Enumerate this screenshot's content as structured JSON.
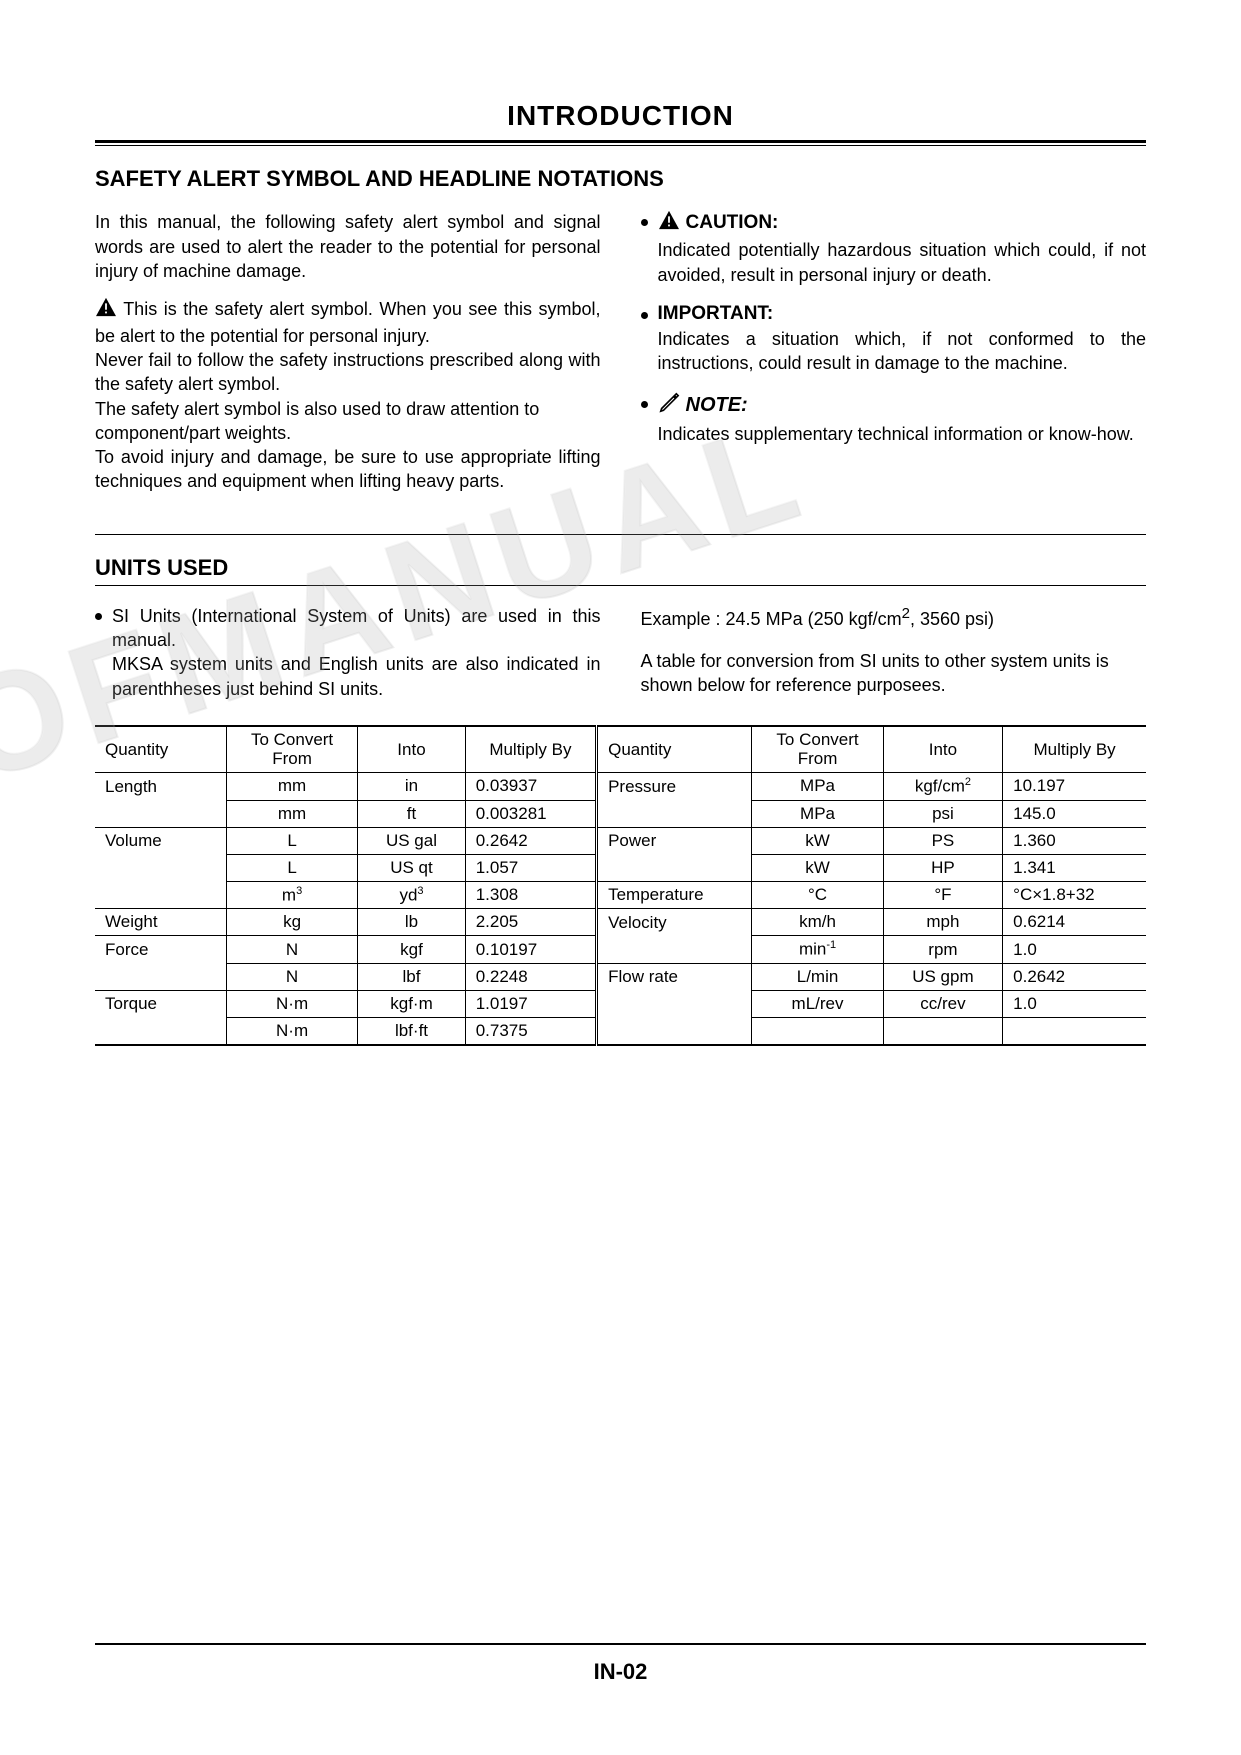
{
  "page_title": "INTRODUCTION",
  "section1": {
    "heading": "SAFETY ALERT SYMBOL AND HEADLINE NOTATIONS",
    "left": {
      "intro": "In this manual, the following safety alert symbol and signal words are used to alert the reader to the potential for personal injury of machine damage.",
      "p1": "This is the safety alert symbol. When you see this symbol, be alert to the potential for personal injury.",
      "p2": "Never fail to follow the safety instructions prescribed along with the safety alert symbol.",
      "p3": "The safety alert symbol is also used to draw attention to component/part weights.",
      "p4": "To avoid injury and damage, be sure to use appropriate lifting techniques and equipment when lifting heavy parts."
    },
    "right": {
      "caution_label": "CAUTION:",
      "caution_text": "Indicated potentially hazardous situation which could, if not avoided, result in personal injury or death.",
      "important_label": "IMPORTANT:",
      "important_text": "Indicates a situation which, if not conformed to the instructions, could result in damage to the machine.",
      "note_label": "NOTE:",
      "note_text": "Indicates supplementary technical information or know-how."
    }
  },
  "section2": {
    "heading": "UNITS USED",
    "left_bullet": "SI Units (International System of Units) are used in this manual.",
    "left_p2": "MKSA system units and English units are also indicated in parenthheses just behind SI units.",
    "right_example_prefix": "Example : 24.5 MPa (250 kgf/cm",
    "right_example_suffix": ", 3560 psi)",
    "right_p2": "A table for conversion from SI units to other system units is shown below for reference purposees."
  },
  "table": {
    "headers": {
      "quantity": "Quantity",
      "from": "To Convert From",
      "into": "Into",
      "mult": "Multiply By"
    },
    "rows": [
      {
        "q": "Length",
        "f": "mm",
        "i": "in",
        "m": "0.03937",
        "rq": "Pressure",
        "rf": "MPa",
        "ri_html": "kgf/cm<sup>2</sup>",
        "rm": "10.197"
      },
      {
        "q": "",
        "f": "mm",
        "i": "ft",
        "m": "0.003281",
        "rq": "",
        "rf": "MPa",
        "ri": "psi",
        "rm": "145.0"
      },
      {
        "q": "Volume",
        "f": "L",
        "i": "US gal",
        "m": "0.2642",
        "rq": "Power",
        "rf": "kW",
        "ri": "PS",
        "rm": "1.360"
      },
      {
        "q": "",
        "f": "L",
        "i": "US qt",
        "m": "1.057",
        "rq": "",
        "rf": "kW",
        "ri": "HP",
        "rm": "1.341"
      },
      {
        "q": "",
        "f_html": "m<sup>3</sup>",
        "i_html": "yd<sup>3</sup>",
        "m": "1.308",
        "rq": "Temperature",
        "rf": "°C",
        "ri": "°F",
        "rm": "°C×1.8+32"
      },
      {
        "q": "Weight",
        "f": "kg",
        "i": "lb",
        "m": "2.205",
        "rq": "Velocity",
        "rf": "km/h",
        "ri": "mph",
        "rm": "0.6214"
      },
      {
        "q": "Force",
        "f": "N",
        "i": "kgf",
        "m": "0.10197",
        "rq": "",
        "rf_html": "min<sup>-1</sup>",
        "ri": "rpm",
        "rm": "1.0"
      },
      {
        "q": "",
        "f": "N",
        "i": "lbf",
        "m": "0.2248",
        "rq": "Flow rate",
        "rf": "L/min",
        "ri": "US gpm",
        "rm": "0.2642"
      },
      {
        "q": "Torque",
        "f": "N·m",
        "i": "kgf·m",
        "m": "1.0197",
        "rq": "",
        "rf": "mL/rev",
        "ri": "cc/rev",
        "rm": "1.0"
      },
      {
        "q": "",
        "f": "N·m",
        "i": "lbf·ft",
        "m": "0.7375",
        "rq": "",
        "rf": "",
        "ri": "",
        "rm": ""
      }
    ]
  },
  "watermark": "OFMANUAL",
  "page_number": "IN-02"
}
